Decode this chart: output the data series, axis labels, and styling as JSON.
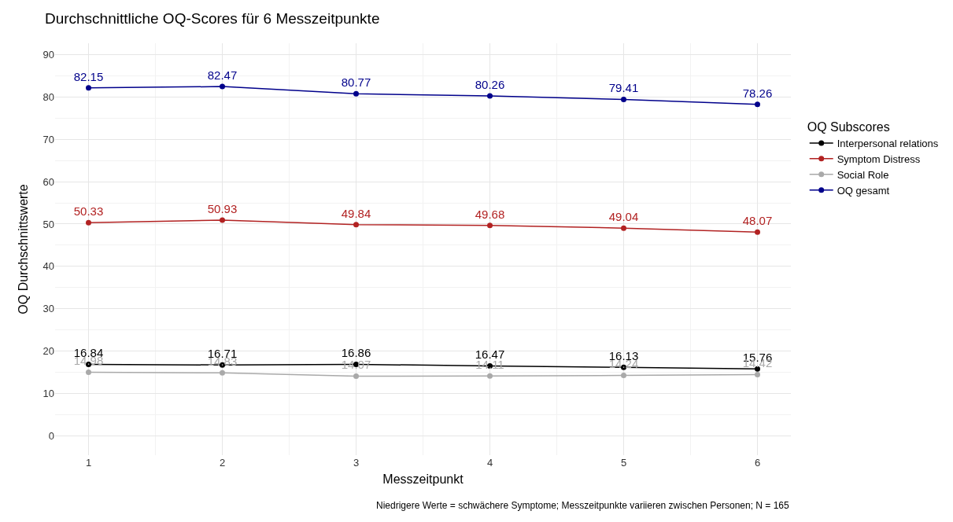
{
  "chart_data": {
    "type": "line",
    "title": "Durchschnittliche OQ-Scores für 6 Messzeitpunkte",
    "xlabel": "Messzeitpunkt",
    "ylabel": "OQ Durchschnittswerte",
    "legend_title": "OQ Subscores",
    "x": [
      1,
      2,
      3,
      4,
      5,
      6
    ],
    "series": [
      {
        "name": "Interpersonal relations",
        "color": "#000000",
        "values": [
          16.84,
          16.71,
          16.86,
          16.47,
          16.13,
          15.76
        ]
      },
      {
        "name": "Symptom Distress",
        "color": "#b22222",
        "values": [
          50.33,
          50.93,
          49.84,
          49.68,
          49.04,
          48.07
        ]
      },
      {
        "name": "Social Role",
        "color": "#a9a9a9",
        "values": [
          14.98,
          14.83,
          14.07,
          14.11,
          14.24,
          14.42
        ]
      },
      {
        "name": "OQ gesamt",
        "color": "#00008b",
        "values": [
          82.15,
          82.47,
          80.77,
          80.26,
          79.41,
          78.26
        ]
      }
    ],
    "xlim": [
      0.75,
      6.25
    ],
    "xticks": [
      1,
      2,
      3,
      4,
      5,
      6
    ],
    "ylim": [
      -4.6,
      92.7
    ],
    "yticks": [
      0,
      10,
      20,
      30,
      40,
      50,
      60,
      70,
      80,
      90
    ],
    "grid": true,
    "legend": "right",
    "marker": "circle",
    "line_style": "solid",
    "data_labels": true,
    "annotations": [
      "Niedrigere Werte = schwächere Symptome; Messzeitpunkte variieren zwischen Personen; N = 165"
    ]
  }
}
